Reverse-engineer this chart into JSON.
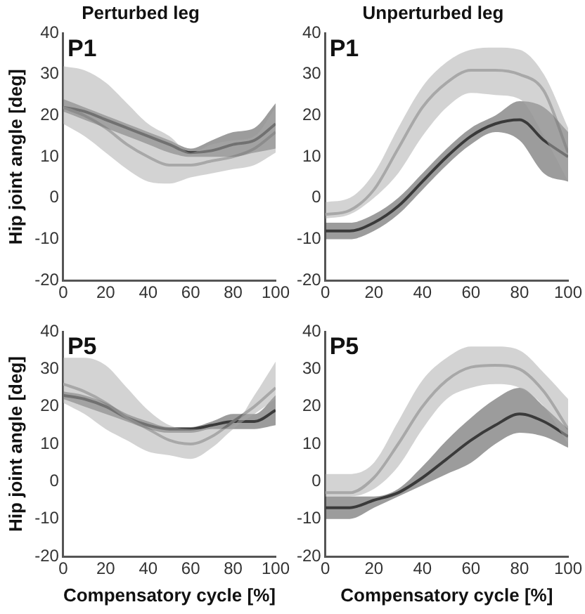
{
  "chart_data": [
    {
      "type": "line",
      "title": "Perturbed leg",
      "ylabel": "Hip joint angle [deg]",
      "annotations": [
        "P1"
      ],
      "x": [
        0,
        10,
        20,
        30,
        40,
        50,
        60,
        70,
        80,
        90,
        100
      ],
      "xlim": [
        0,
        100
      ],
      "xticks": [
        0,
        20,
        40,
        60,
        80,
        100
      ],
      "ylim": [
        -20,
        40
      ],
      "yticks": [
        -20,
        -10,
        0,
        10,
        20,
        30,
        40
      ],
      "series": [
        {
          "color": "#a8a8a8",
          "values": [
            22,
            20,
            17,
            13,
            10,
            8,
            8,
            9,
            10,
            12,
            16
          ],
          "lower": [
            18,
            15,
            11,
            7,
            4,
            3.5,
            5,
            6,
            7,
            8,
            11
          ],
          "upper": [
            32,
            31,
            28,
            23,
            18,
            15,
            11,
            13,
            14,
            15,
            22
          ]
        },
        {
          "color": "#3a3a3a",
          "values": [
            22,
            21,
            19,
            17,
            15,
            13,
            11,
            11.5,
            13,
            14,
            18
          ],
          "lower": [
            21,
            19,
            17,
            15,
            13,
            11,
            10,
            10,
            10,
            11,
            12
          ],
          "upper": [
            24,
            22,
            20,
            18,
            16,
            14,
            12,
            14,
            16,
            17,
            23
          ]
        }
      ]
    },
    {
      "type": "line",
      "title": "Unperturbed leg",
      "annotations": [
        "P1"
      ],
      "x": [
        0,
        10,
        20,
        30,
        40,
        50,
        60,
        70,
        80,
        90,
        100
      ],
      "xlim": [
        0,
        100
      ],
      "xticks": [
        0,
        20,
        40,
        60,
        80,
        100
      ],
      "ylim": [
        -20,
        40
      ],
      "yticks": [
        -20,
        -10,
        0,
        10,
        20,
        30,
        40
      ],
      "series": [
        {
          "color": "#a8a8a8",
          "values": [
            -4,
            -3,
            2,
            12,
            22,
            28,
            31,
            31,
            30,
            26,
            11
          ],
          "lower": [
            -5,
            -4,
            0,
            6,
            15,
            22,
            25.5,
            25,
            24,
            15,
            4
          ],
          "upper": [
            -1,
            0,
            6,
            17,
            27,
            33,
            36,
            36.5,
            36,
            30,
            17
          ]
        },
        {
          "color": "#3a3a3a",
          "values": [
            -8,
            -8,
            -6,
            -2,
            4,
            10,
            15,
            18,
            19,
            14,
            10
          ],
          "lower": [
            -10,
            -10,
            -8,
            -4,
            2,
            8,
            13,
            16,
            14,
            6,
            4
          ],
          "upper": [
            -6,
            -6,
            -4,
            0,
            6,
            12,
            17,
            20,
            23.5,
            22,
            16
          ]
        }
      ]
    },
    {
      "type": "line",
      "xlabel": "Compensatory cycle [%]",
      "ylabel": "Hip joint angle [deg]",
      "annotations": [
        "P5"
      ],
      "x": [
        0,
        10,
        20,
        30,
        40,
        50,
        60,
        70,
        80,
        90,
        100
      ],
      "xlim": [
        0,
        100
      ],
      "xticks": [
        0,
        20,
        40,
        60,
        80,
        100
      ],
      "ylim": [
        -20,
        40
      ],
      "yticks": [
        -20,
        -10,
        0,
        10,
        20,
        30,
        40
      ],
      "series": [
        {
          "color": "#a8a8a8",
          "values": [
            26,
            24,
            21,
            17,
            14,
            11,
            10,
            12,
            16,
            20,
            25
          ],
          "lower": [
            21,
            18,
            14,
            11,
            8,
            7,
            6,
            9,
            14,
            18,
            22
          ],
          "upper": [
            33,
            33,
            31,
            25,
            19,
            15,
            14,
            14,
            15,
            23,
            32
          ]
        },
        {
          "color": "#3a3a3a",
          "values": [
            23,
            22,
            20,
            17,
            15,
            14,
            14,
            15,
            16,
            16,
            19
          ],
          "lower": [
            22,
            20,
            18,
            16,
            14,
            13,
            13,
            14,
            14,
            14,
            15
          ],
          "upper": [
            24,
            23,
            21,
            18,
            16,
            14.5,
            14.5,
            16,
            18,
            18,
            23
          ]
        }
      ]
    },
    {
      "type": "line",
      "xlabel": "Compensatory cycle [%]",
      "annotations": [
        "P5"
      ],
      "x": [
        0,
        10,
        20,
        30,
        40,
        50,
        60,
        70,
        80,
        90,
        100
      ],
      "xlim": [
        0,
        100
      ],
      "xticks": [
        0,
        20,
        40,
        60,
        80,
        100
      ],
      "ylim": [
        -20,
        40
      ],
      "yticks": [
        -20,
        -10,
        0,
        10,
        20,
        30,
        40
      ],
      "series": [
        {
          "color": "#a8a8a8",
          "values": [
            -3,
            -3,
            1,
            10,
            20,
            27,
            30.5,
            31,
            30,
            24,
            14
          ],
          "lower": [
            -4,
            -4,
            -2,
            4,
            14,
            22,
            25,
            26,
            25,
            20,
            10
          ],
          "upper": [
            2,
            2,
            5,
            16,
            27,
            33,
            36,
            36,
            35,
            29,
            22
          ]
        },
        {
          "color": "#3a3a3a",
          "values": [
            -7,
            -7,
            -5,
            -3,
            1,
            6,
            11,
            15,
            18,
            16,
            12
          ],
          "lower": [
            -10,
            -10,
            -7,
            -4,
            -1,
            2,
            5,
            10,
            13,
            12,
            9
          ],
          "upper": [
            -4,
            -4,
            -4,
            -2,
            4,
            11,
            17,
            22,
            25,
            20,
            14
          ]
        }
      ]
    }
  ]
}
